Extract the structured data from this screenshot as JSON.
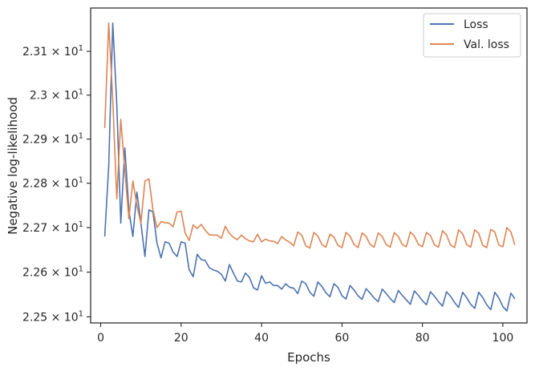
{
  "chart_data": {
    "type": "line",
    "xlabel": "Epochs",
    "ylabel": "Negative log-likelihood",
    "x_ticks": [
      "0",
      "20",
      "40",
      "60",
      "80",
      "100"
    ],
    "y_ticks": [
      {
        "value": 22.5,
        "mantissa": "2.25",
        "base": "10",
        "exp": "1"
      },
      {
        "value": 22.6,
        "mantissa": "2.26",
        "base": "10",
        "exp": "1"
      },
      {
        "value": 22.7,
        "mantissa": "2.27",
        "base": "10",
        "exp": "1"
      },
      {
        "value": 22.8,
        "mantissa": "2.28",
        "base": "10",
        "exp": "1"
      },
      {
        "value": 22.9,
        "mantissa": "2.29",
        "base": "10",
        "exp": "1"
      },
      {
        "value": 23.0,
        "mantissa": "2.3",
        "base": "10",
        "exp": "1"
      },
      {
        "value": 23.1,
        "mantissa": "2.31",
        "base": "10",
        "exp": "1"
      }
    ],
    "xlim": [
      -2.5,
      106
    ],
    "ylim": [
      22.4865,
      23.1995
    ],
    "yscale": "log",
    "legend_position": "top-right",
    "series": [
      {
        "name": "Loss",
        "color": "#4c72b0",
        "x": [
          1,
          2,
          3,
          4,
          5,
          6,
          7,
          8,
          9,
          10,
          11,
          12,
          13,
          14,
          15,
          16,
          17,
          18,
          19,
          20,
          21,
          22,
          23,
          24,
          25,
          26,
          27,
          28,
          29,
          30,
          31,
          32,
          33,
          34,
          35,
          36,
          37,
          38,
          39,
          40,
          41,
          42,
          43,
          44,
          45,
          46,
          47,
          48,
          49,
          50,
          51,
          52,
          53,
          54,
          55,
          56,
          57,
          58,
          59,
          60,
          61,
          62,
          63,
          64,
          65,
          66,
          67,
          68,
          69,
          70,
          71,
          72,
          73,
          74,
          75,
          76,
          77,
          78,
          79,
          80,
          81,
          82,
          83,
          84,
          85,
          86,
          87,
          88,
          89,
          90,
          91,
          92,
          93,
          94,
          95,
          96,
          97,
          98,
          99,
          100,
          101,
          102,
          103
        ],
        "y": [
          22.68,
          22.84,
          23.165,
          22.98,
          22.71,
          22.88,
          22.74,
          22.68,
          22.78,
          22.71,
          22.635,
          22.74,
          22.735,
          22.665,
          22.632,
          22.668,
          22.665,
          22.645,
          22.635,
          22.668,
          22.665,
          22.605,
          22.59,
          22.64,
          22.628,
          22.626,
          22.61,
          22.605,
          22.602,
          22.595,
          22.58,
          22.617,
          22.598,
          22.58,
          22.578,
          22.598,
          22.588,
          22.565,
          22.56,
          22.592,
          22.575,
          22.578,
          22.57,
          22.57,
          22.562,
          22.574,
          22.566,
          22.564,
          22.552,
          22.58,
          22.574,
          22.555,
          22.546,
          22.578,
          22.568,
          22.554,
          22.545,
          22.574,
          22.566,
          22.547,
          22.54,
          22.57,
          22.56,
          22.547,
          22.539,
          22.563,
          22.553,
          22.542,
          22.534,
          22.562,
          22.552,
          22.541,
          22.532,
          22.559,
          22.548,
          22.538,
          22.528,
          22.558,
          22.548,
          22.536,
          22.527,
          22.556,
          22.546,
          22.534,
          22.524,
          22.556,
          22.546,
          22.532,
          22.521,
          22.555,
          22.543,
          22.528,
          22.519,
          22.555,
          22.543,
          22.527,
          22.516,
          22.555,
          22.542,
          22.523,
          22.513,
          22.553,
          22.54
        ]
      },
      {
        "name": "Val. loss",
        "color": "#dd8452",
        "x": [
          1,
          2,
          3,
          4,
          5,
          6,
          7,
          8,
          9,
          10,
          11,
          12,
          13,
          14,
          15,
          16,
          17,
          18,
          19,
          20,
          21,
          22,
          23,
          24,
          25,
          26,
          27,
          28,
          29,
          30,
          31,
          32,
          33,
          34,
          35,
          36,
          37,
          38,
          39,
          40,
          41,
          42,
          43,
          44,
          45,
          46,
          47,
          48,
          49,
          50,
          51,
          52,
          53,
          54,
          55,
          56,
          57,
          58,
          59,
          60,
          61,
          62,
          63,
          64,
          65,
          66,
          67,
          68,
          69,
          70,
          71,
          72,
          73,
          74,
          75,
          76,
          77,
          78,
          79,
          80,
          81,
          82,
          83,
          84,
          85,
          86,
          87,
          88,
          89,
          90,
          91,
          92,
          93,
          94,
          95,
          96,
          97,
          98,
          99,
          100,
          101,
          102,
          103
        ],
        "y": [
          22.925,
          23.165,
          22.99,
          22.765,
          22.945,
          22.83,
          22.72,
          22.805,
          22.75,
          22.71,
          22.805,
          22.81,
          22.74,
          22.7,
          22.713,
          22.711,
          22.71,
          22.702,
          22.735,
          22.737,
          22.688,
          22.671,
          22.706,
          22.698,
          22.707,
          22.694,
          22.684,
          22.683,
          22.683,
          22.676,
          22.703,
          22.687,
          22.678,
          22.673,
          22.683,
          22.675,
          22.67,
          22.668,
          22.685,
          22.668,
          22.674,
          22.67,
          22.669,
          22.664,
          22.68,
          22.672,
          22.667,
          22.659,
          22.69,
          22.683,
          22.659,
          22.654,
          22.689,
          22.681,
          22.662,
          22.656,
          22.685,
          22.679,
          22.66,
          22.655,
          22.689,
          22.681,
          22.662,
          22.655,
          22.688,
          22.68,
          22.662,
          22.656,
          22.688,
          22.68,
          22.662,
          22.656,
          22.689,
          22.68,
          22.662,
          22.657,
          22.69,
          22.681,
          22.662,
          22.657,
          22.689,
          22.682,
          22.661,
          22.656,
          22.693,
          22.683,
          22.661,
          22.655,
          22.695,
          22.686,
          22.662,
          22.656,
          22.695,
          22.687,
          22.66,
          22.655,
          22.696,
          22.69,
          22.661,
          22.657,
          22.7,
          22.69,
          22.661
        ]
      }
    ]
  }
}
